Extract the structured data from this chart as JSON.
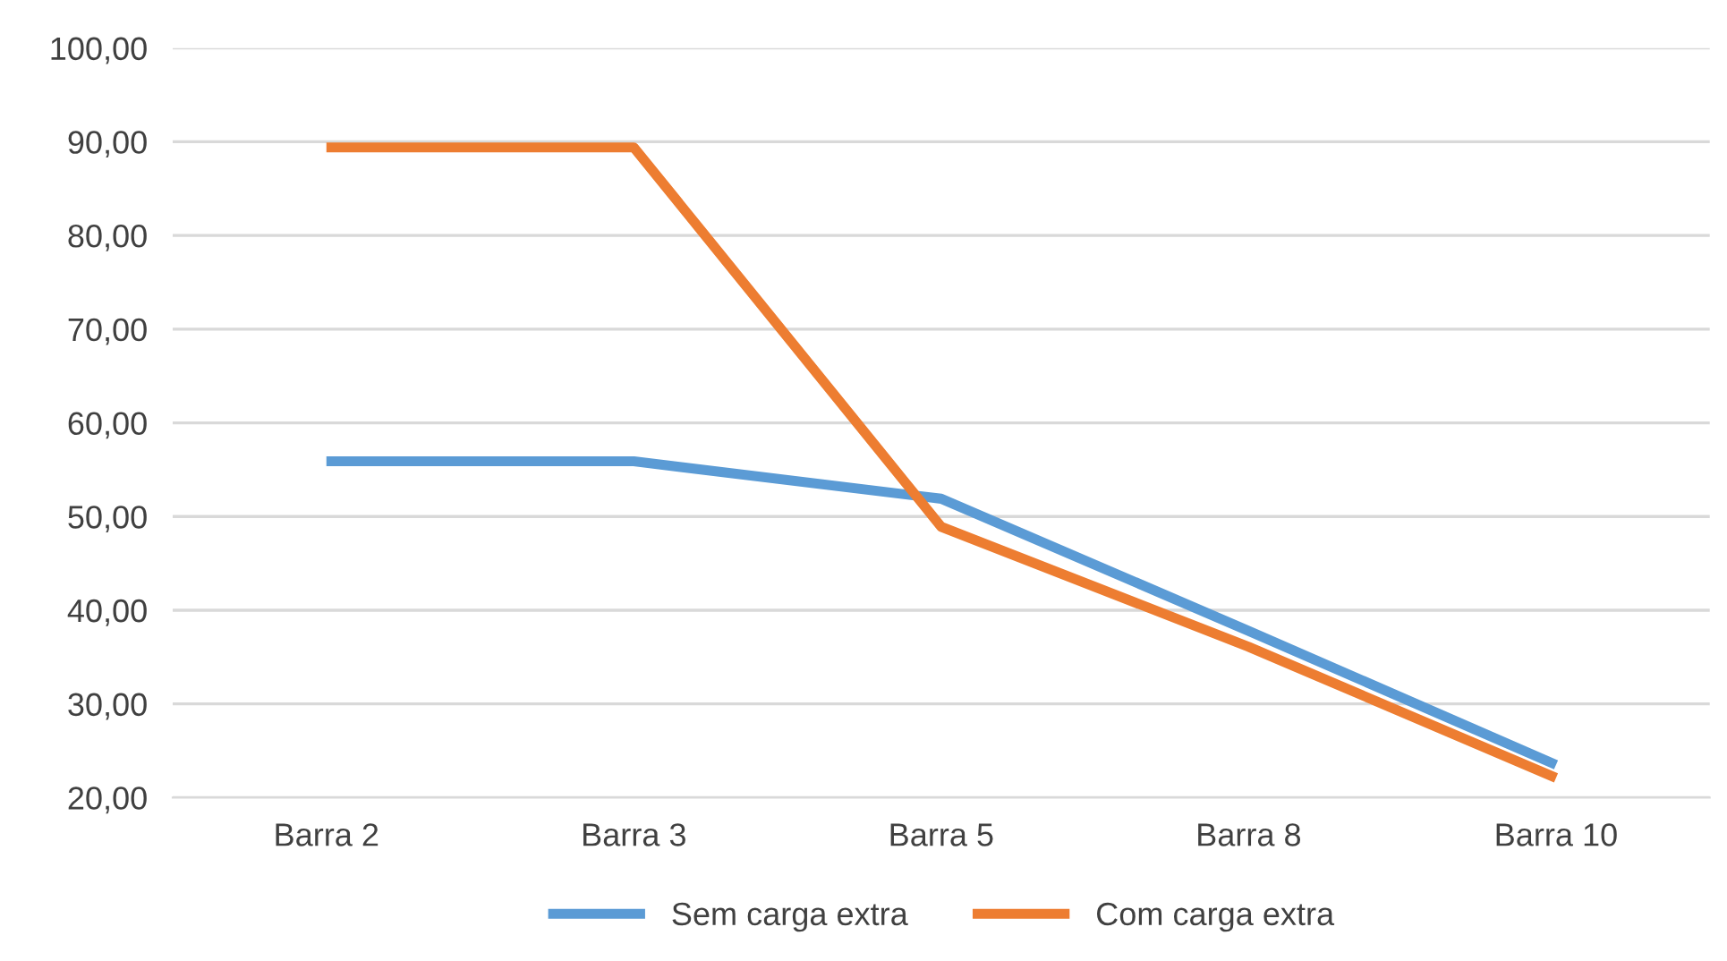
{
  "chart_data": {
    "type": "line",
    "categories": [
      "Barra 2",
      "Barra 3",
      "Barra 5",
      "Barra 8",
      "Barra 10"
    ],
    "series": [
      {
        "name": "Sem carga extra",
        "color": "#5b9bd5",
        "values": [
          55.9,
          55.9,
          51.9,
          37.8,
          23.5
        ]
      },
      {
        "name": "Com carga extra",
        "color": "#ed7d31",
        "values": [
          89.4,
          89.4,
          48.9,
          36.1,
          22.1
        ]
      }
    ],
    "ylim": [
      20,
      100
    ],
    "yticks": [
      {
        "value": 20,
        "label": "20,00"
      },
      {
        "value": 30,
        "label": "30,00"
      },
      {
        "value": 40,
        "label": "40,00"
      },
      {
        "value": 50,
        "label": "50,00"
      },
      {
        "value": 60,
        "label": "60,00"
      },
      {
        "value": 70,
        "label": "70,00"
      },
      {
        "value": 80,
        "label": "80,00"
      },
      {
        "value": 90,
        "label": "90,00"
      },
      {
        "value": 100,
        "label": "100,00"
      }
    ],
    "grid": "y",
    "legend": "bottom",
    "marker": "none",
    "line_style": "solid"
  }
}
